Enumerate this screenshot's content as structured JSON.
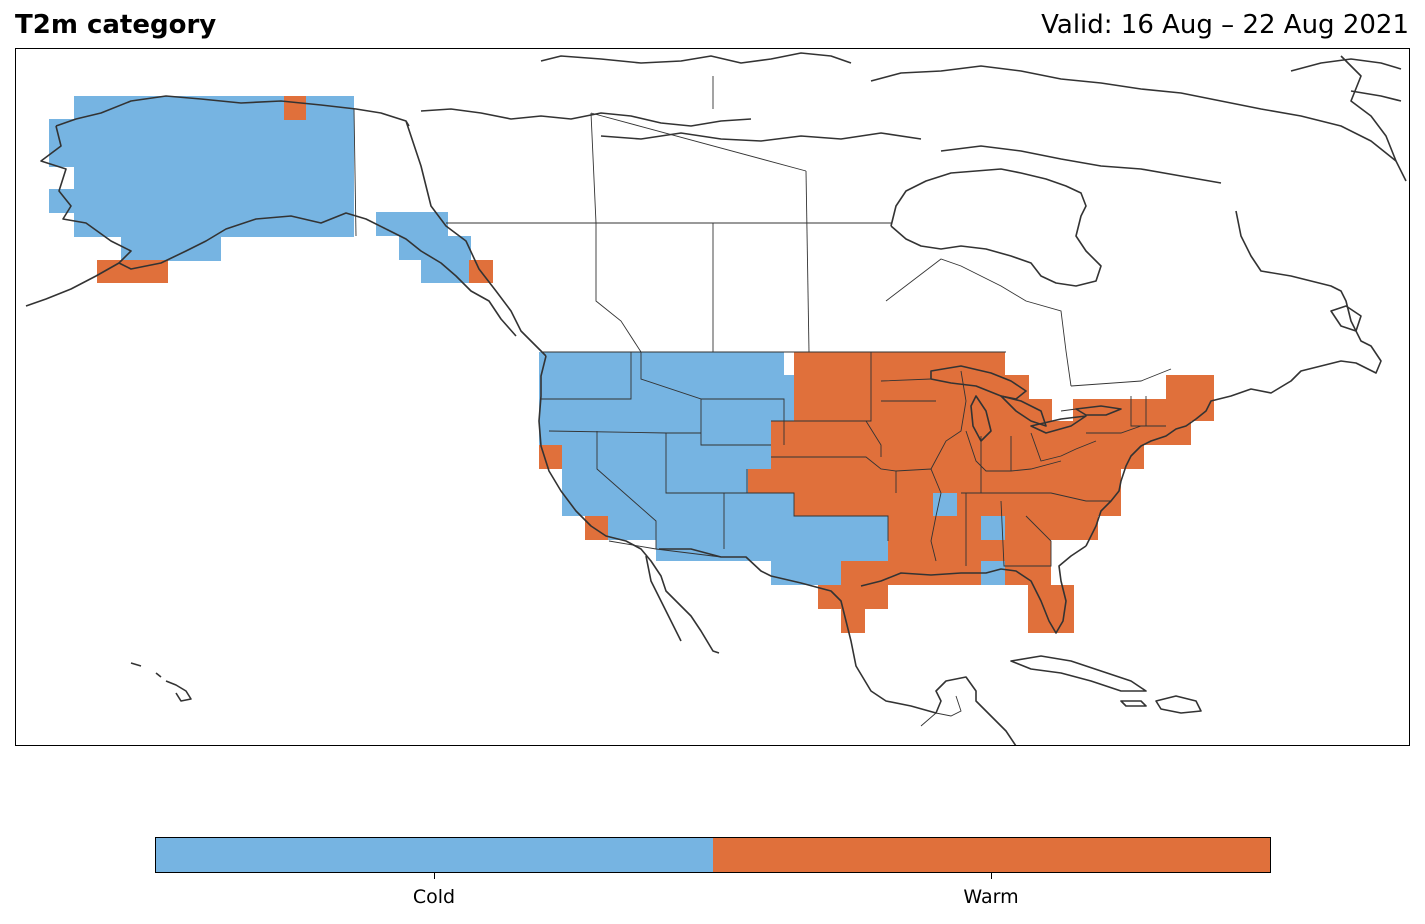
{
  "header": {
    "title": "T2m category",
    "valid": "Valid: 16 Aug – 22 Aug 2021"
  },
  "legend": {
    "categories": [
      {
        "label": "Cold",
        "color": "#76b4e2"
      },
      {
        "label": "Warm",
        "color": "#e0703b"
      }
    ]
  },
  "map": {
    "region": "North America",
    "boundaries": [
      "coastlines",
      "country borders",
      "US states",
      "Canadian provinces"
    ],
    "line_color": "#333333",
    "cold_areas": [
      "Alaska interior and north slope",
      "Southeast Alaska panhandle",
      "US West Coast and Great Basin",
      "Rocky Mountains and northern Plains",
      "Southwest and west Texas",
      "isolated cells in Arkansas and Alabama"
    ],
    "warm_areas": [
      "Alaska southern coast",
      "northeastern Alaska spot",
      "southern panhandle coast",
      "southern California coast",
      "central US Plains and Midwest",
      "Great Lakes and Northeast",
      "Southeast and Florida",
      "east and south Texas Gulf coast"
    ]
  }
}
